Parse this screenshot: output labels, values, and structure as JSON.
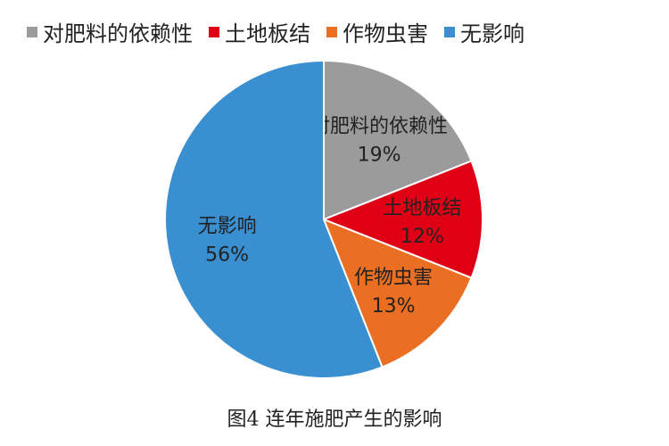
{
  "chart_data": {
    "type": "pie",
    "legend_position": "top",
    "categories": [
      "对肥料的依赖性",
      "土地板结",
      "作物虫害",
      "无影响"
    ],
    "values": [
      19,
      12,
      13,
      56
    ],
    "value_labels": [
      "19%",
      "12%",
      "13%",
      "56%"
    ],
    "colors": [
      "#9b9b9b",
      "#e00016",
      "#ea6f23",
      "#3a8fd1"
    ],
    "start_angle_deg": 0,
    "direction": "clockwise"
  },
  "caption": "图4  连年施肥产生的影响"
}
